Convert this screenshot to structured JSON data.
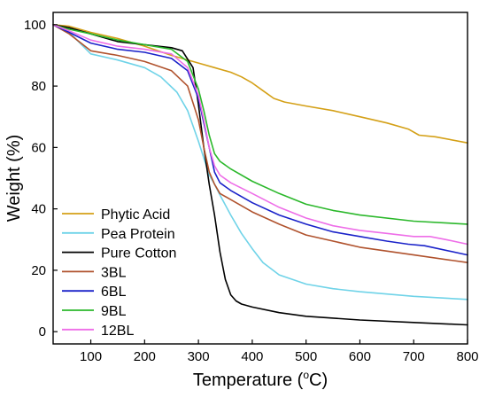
{
  "chart_data": {
    "type": "line",
    "xlabel": "Temperature (",
    "xlabel_unit_sup": "o",
    "xlabel_unit_suffix": "C)",
    "ylabel": "Weight (%)",
    "xlim": [
      30,
      800
    ],
    "ylim": [
      -4,
      104
    ],
    "xticks": [
      100,
      200,
      300,
      400,
      500,
      600,
      700,
      800
    ],
    "xtick_labels": [
      "100",
      "200",
      "300",
      "400",
      "500",
      "600",
      "700",
      "800"
    ],
    "yticks": [
      0,
      20,
      40,
      60,
      80,
      100
    ],
    "ytick_labels": [
      "0",
      "20",
      "40",
      "60",
      "80",
      "100"
    ],
    "grid": false,
    "legend_position": "bottom-left",
    "series": [
      {
        "name": "Phytic Acid",
        "color": "#D4A017",
        "x": [
          30,
          60,
          100,
          150,
          200,
          250,
          300,
          330,
          360,
          380,
          400,
          420,
          440,
          460,
          500,
          550,
          600,
          650,
          690,
          710,
          740,
          800
        ],
        "y": [
          100,
          99.5,
          97.5,
          95.5,
          93,
          90,
          87.5,
          86,
          84.5,
          83,
          81,
          78.5,
          76,
          74.8,
          73.5,
          72,
          70,
          68,
          66,
          64,
          63.5,
          61.5
        ]
      },
      {
        "name": "Pea Protein",
        "color": "#6FD3E8",
        "x": [
          30,
          60,
          100,
          150,
          200,
          230,
          260,
          280,
          300,
          320,
          330,
          340,
          360,
          380,
          400,
          420,
          450,
          500,
          550,
          600,
          700,
          800
        ],
        "y": [
          100,
          97.5,
          90.5,
          88.5,
          86,
          83,
          78,
          72,
          62,
          51,
          48,
          44.5,
          38,
          32,
          27,
          22.5,
          18.5,
          15.5,
          14,
          13,
          11.5,
          10.5
        ]
      },
      {
        "name": "Pure Cotton",
        "color": "#000000",
        "x": [
          30,
          60,
          100,
          150,
          200,
          250,
          270,
          290,
          300,
          310,
          320,
          330,
          340,
          350,
          360,
          370,
          380,
          400,
          450,
          500,
          600,
          700,
          800
        ],
        "y": [
          100,
          99,
          97,
          94.5,
          93.5,
          92.5,
          91.5,
          86,
          74,
          60,
          48,
          38,
          26,
          17,
          12,
          10,
          9,
          8,
          6.2,
          5,
          3.8,
          3,
          2.2
        ]
      },
      {
        "name": "3BL",
        "color": "#B0522D",
        "x": [
          30,
          60,
          100,
          150,
          200,
          250,
          280,
          300,
          310,
          320,
          330,
          340,
          360,
          400,
          450,
          500,
          600,
          700,
          800
        ],
        "y": [
          100,
          97,
          91.5,
          90,
          88,
          85,
          80,
          69,
          60,
          52,
          48,
          45,
          43,
          39,
          35,
          31.5,
          27.5,
          25,
          22.5
        ]
      },
      {
        "name": "6BL",
        "color": "#1A22C9",
        "x": [
          30,
          60,
          100,
          150,
          200,
          250,
          280,
          300,
          310,
          320,
          330,
          340,
          360,
          400,
          450,
          500,
          550,
          600,
          650,
          690,
          720,
          800
        ],
        "y": [
          100,
          97.5,
          94,
          92,
          91,
          89,
          85,
          76,
          68,
          60,
          52,
          48.5,
          46,
          42,
          38,
          35,
          32.5,
          31,
          29.5,
          28.5,
          28,
          25
        ]
      },
      {
        "name": "9BL",
        "color": "#2BB82B",
        "x": [
          30,
          60,
          100,
          150,
          200,
          250,
          280,
          300,
          310,
          320,
          330,
          340,
          360,
          400,
          450,
          500,
          550,
          600,
          700,
          800
        ],
        "y": [
          100,
          98.5,
          97,
          95,
          93.5,
          92,
          88,
          79,
          72,
          64,
          58,
          55.5,
          53,
          49,
          45,
          41.5,
          39.5,
          38,
          36,
          35
        ]
      },
      {
        "name": "12BL",
        "color": "#EE6EE8",
        "x": [
          30,
          60,
          100,
          150,
          200,
          250,
          280,
          300,
          310,
          320,
          330,
          340,
          360,
          400,
          450,
          500,
          550,
          600,
          650,
          700,
          730,
          760,
          800
        ],
        "y": [
          100,
          98,
          95,
          93,
          92,
          90.5,
          86,
          77,
          69,
          60,
          54,
          51,
          48.5,
          45,
          40.5,
          37,
          34.5,
          33,
          32,
          31,
          31,
          30,
          28.5
        ]
      }
    ]
  }
}
